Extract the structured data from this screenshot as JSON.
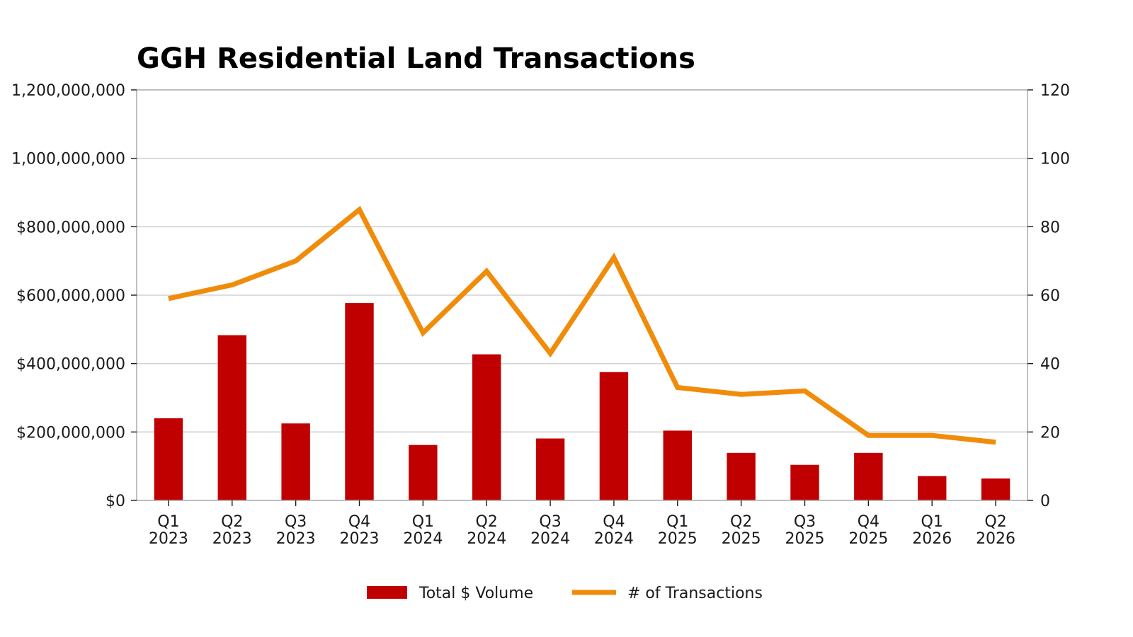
{
  "chart_data": {
    "type": "bar",
    "title": "GGH Residential Land Transactions",
    "categories": [
      [
        "Q1",
        "2023"
      ],
      [
        "Q2",
        "2023"
      ],
      [
        "Q3",
        "2023"
      ],
      [
        "Q4",
        "2023"
      ],
      [
        "Q1",
        "2024"
      ],
      [
        "Q2",
        "2024"
      ],
      [
        "Q3",
        "2024"
      ],
      [
        "Q4",
        "2024"
      ],
      [
        "Q1",
        "2025"
      ],
      [
        "Q2",
        "2025"
      ],
      [
        "Q3",
        "2025"
      ],
      [
        "Q4",
        "2025"
      ],
      [
        "Q1",
        "2026"
      ],
      [
        "Q2",
        "2026"
      ]
    ],
    "series": [
      {
        "name": "Total $ Volume",
        "type": "bar",
        "axis": "left",
        "color": "#c00000",
        "values": [
          240000000,
          483000000,
          225000000,
          577000000,
          162000000,
          427000000,
          181000000,
          375000000,
          204000000,
          139000000,
          104000000,
          139000000,
          71000000,
          64000000
        ]
      },
      {
        "name": "# of Transactions",
        "type": "line",
        "axis": "right",
        "color": "#f08c0a",
        "values": [
          59,
          63,
          70,
          85,
          49,
          67,
          43,
          71,
          33,
          31,
          32,
          19,
          19,
          17
        ]
      }
    ],
    "y_left": {
      "ylim": [
        0,
        1200000000
      ],
      "ticks": [
        0,
        200000000,
        400000000,
        600000000,
        800000000,
        1000000000,
        1200000000
      ],
      "tick_labels": [
        "$0",
        "$200,000,000",
        "$400,000,000",
        "$600,000,000",
        "$800,000,000",
        "1,000,000,000",
        "1,200,000,000"
      ]
    },
    "y_right": {
      "ylim": [
        0,
        120
      ],
      "ticks": [
        0,
        20,
        40,
        60,
        80,
        100,
        120
      ],
      "tick_labels": [
        "0",
        "20",
        "40",
        "60",
        "80",
        "100",
        "120"
      ]
    },
    "grid": true,
    "legend": {
      "position": "bottom-center",
      "entries": [
        "Total $ Volume",
        "# of Transactions"
      ]
    }
  }
}
